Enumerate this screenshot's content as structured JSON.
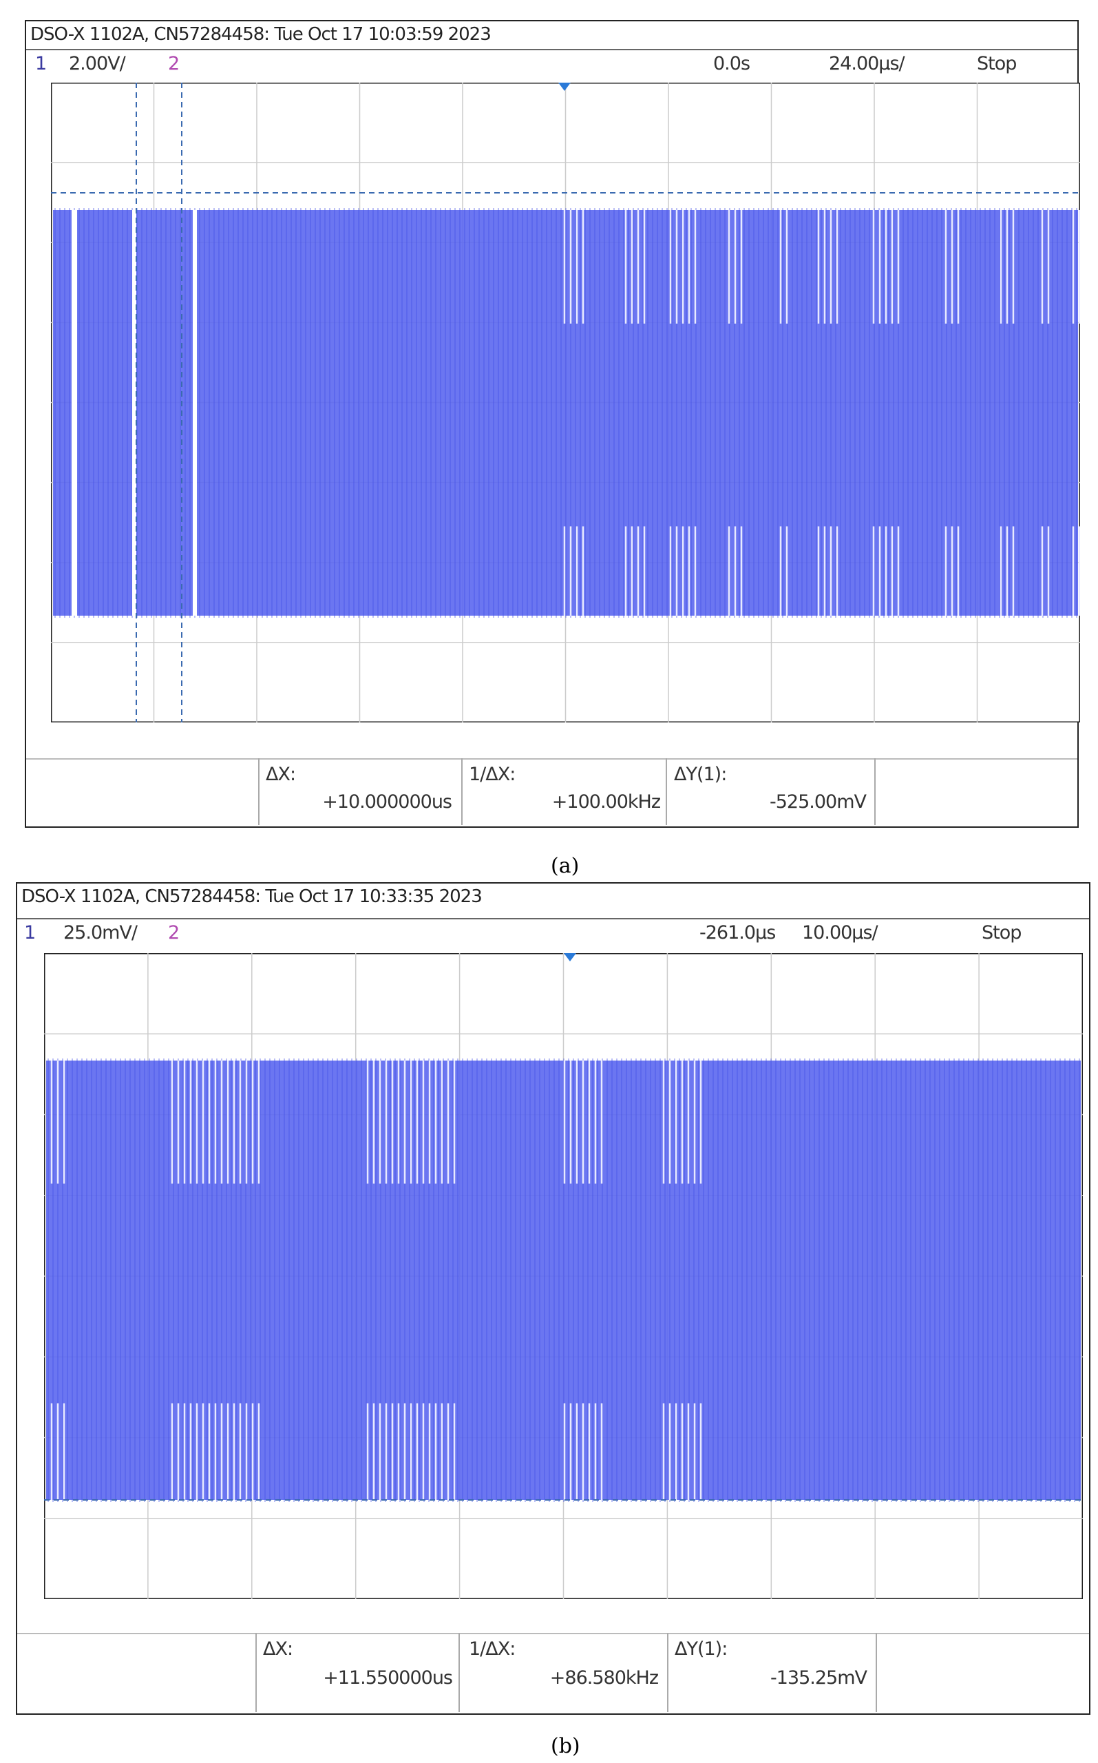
{
  "panels": [
    {
      "header": "DSO-X 1102A, CN57284458: Tue Oct 17 10:03:59 2023",
      "channel_1": "1",
      "scale_1": "2.00V/",
      "channel_2": "2",
      "delay": "0.0s",
      "time_scale": "24.00µs/",
      "status": "Stop",
      "measurements": [
        {
          "label": "ΔX:",
          "value": "+10.000000us"
        },
        {
          "label": "1/ΔX:",
          "value": "+100.00kHz"
        },
        {
          "label": "ΔY(1):",
          "value": "-525.00mV"
        }
      ],
      "caption": "(a)"
    },
    {
      "header": "DSO-X 1102A, CN57284458: Tue Oct 17 10:33:35 2023",
      "channel_1": "1",
      "scale_1": "25.0mV/",
      "channel_2": "2",
      "delay": "-261.0µs",
      "time_scale": "10.00µs/",
      "status": "Stop",
      "measurements": [
        {
          "label": "ΔX:",
          "value": "+11.550000us"
        },
        {
          "label": "1/ΔX:",
          "value": "+86.580kHz"
        },
        {
          "label": "ΔY(1):",
          "value": "-135.25mV"
        }
      ],
      "caption": "(b)"
    }
  ]
}
